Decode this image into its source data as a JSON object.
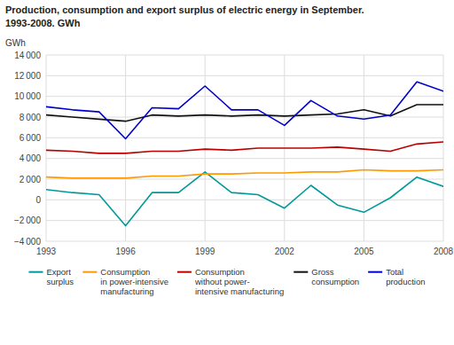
{
  "chart_data": {
    "type": "line",
    "title": "Production, consumption and export surplus of electric energy in September.",
    "subtitle": "1993-2008. GWh",
    "y_label": "GWh",
    "x": [
      1993,
      1994,
      1995,
      1996,
      1997,
      1998,
      1999,
      2000,
      2001,
      2002,
      2003,
      2004,
      2005,
      2006,
      2007,
      2008
    ],
    "xlim": [
      1993,
      2008
    ],
    "xticks": [
      1993,
      1996,
      1999,
      2002,
      2005,
      2008
    ],
    "ylim": [
      -4000,
      14000
    ],
    "yticks": [
      {
        "value": -4000,
        "label": "−4 000"
      },
      {
        "value": -2000,
        "label": "−2 000"
      },
      0,
      {
        "value": 2000,
        "label": "2 000"
      },
      {
        "value": 4000,
        "label": "4 000"
      },
      {
        "value": 6000,
        "label": "6 000"
      },
      {
        "value": 8000,
        "label": "8 000"
      },
      {
        "value": 10000,
        "label": "10 000"
      },
      {
        "value": 12000,
        "label": "12 000"
      },
      {
        "value": 14000,
        "label": "14 000"
      }
    ],
    "grid": true,
    "legend": "bottom",
    "series": [
      {
        "name": "Export\nsurplus",
        "color": "#009999",
        "values": [
          1000,
          700,
          500,
          -2500,
          700,
          700,
          2700,
          700,
          500,
          -800,
          1400,
          -500,
          -1200,
          200,
          2200,
          1300
        ]
      },
      {
        "name": "Consumption\nin power-intensive\nmanufacturing",
        "color": "#FF9900",
        "values": [
          2200,
          2100,
          2100,
          2100,
          2300,
          2300,
          2500,
          2500,
          2600,
          2600,
          2700,
          2700,
          2900,
          2800,
          2800,
          2900
        ]
      },
      {
        "name": "Consumption\nwithout power-\nintensive manufacturing",
        "color": "#BB0000",
        "values": [
          4800,
          4700,
          4500,
          4500,
          4700,
          4700,
          4900,
          4800,
          5000,
          5000,
          5000,
          5100,
          4900,
          4700,
          5400,
          5600
        ]
      },
      {
        "name": "Gross\nconsumption",
        "color": "#111111",
        "values": [
          8200,
          8000,
          7800,
          7600,
          8200,
          8100,
          8200,
          8100,
          8200,
          8100,
          8200,
          8300,
          8700,
          8100,
          9200,
          9200
        ]
      },
      {
        "name": "Total\nproduction",
        "color": "#0000CC",
        "values": [
          9000,
          8700,
          8500,
          5900,
          8900,
          8800,
          11000,
          8700,
          8700,
          7200,
          9600,
          8100,
          7800,
          8200,
          11400,
          10500
        ]
      }
    ]
  }
}
